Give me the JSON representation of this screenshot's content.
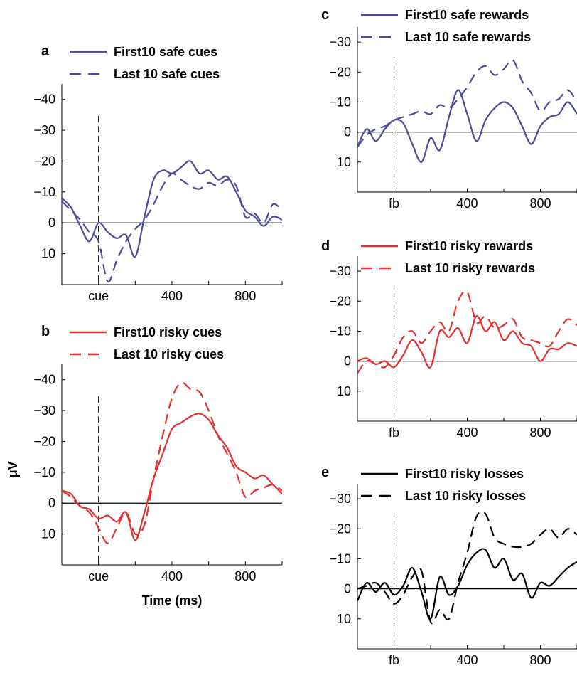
{
  "chart_data": [
    {
      "panel_label": "a",
      "type": "line",
      "xlabel": "",
      "ylabel": "",
      "xlim": [
        -200,
        1000
      ],
      "ylim": [
        -45,
        20
      ],
      "y_reversed": true,
      "xtick_labels": [
        "cue",
        "400",
        "800"
      ],
      "xtick_values": [
        0,
        400,
        800
      ],
      "ytick_values": [
        -40,
        -30,
        -20,
        -10,
        0,
        10
      ],
      "ytick_labels": [
        "−40",
        "−30",
        "−20",
        "−10",
        "0",
        "10"
      ],
      "legend_position": "top",
      "series": [
        {
          "name": "First10 safe cues",
          "color": "#4b4b9b",
          "dash": "solid",
          "x": [
            -200,
            -150,
            -100,
            -50,
            0,
            50,
            100,
            150,
            200,
            250,
            300,
            350,
            400,
            450,
            500,
            550,
            600,
            650,
            700,
            750,
            800,
            850,
            900,
            950,
            1000
          ],
          "y": [
            -8,
            -5,
            1,
            6,
            0,
            3,
            5,
            4,
            11,
            -2,
            -14,
            -17,
            -16,
            -18,
            -20,
            -16,
            -17,
            -14,
            -15,
            -10,
            -4,
            -2,
            1,
            -2,
            -1
          ]
        },
        {
          "name": "Last 10 safe cues",
          "color": "#4b4b9b",
          "dash": "dashed",
          "x": [
            -200,
            -150,
            -100,
            -50,
            0,
            50,
            100,
            150,
            200,
            250,
            300,
            350,
            400,
            450,
            500,
            550,
            600,
            650,
            700,
            750,
            800,
            850,
            900,
            950,
            1000
          ],
          "y": [
            -7,
            -4,
            -1,
            3,
            6,
            19,
            12,
            6,
            2,
            -1,
            -6,
            -12,
            -16,
            -14,
            -12,
            -11,
            -13,
            -12,
            -14,
            -12,
            -2,
            -3,
            0,
            -6,
            -4
          ]
        }
      ]
    },
    {
      "panel_label": "b",
      "type": "line",
      "xlabel": "Time (ms)",
      "ylabel": "μV",
      "xlim": [
        -200,
        1000
      ],
      "ylim": [
        -45,
        20
      ],
      "y_reversed": true,
      "xtick_labels": [
        "cue",
        "400",
        "800"
      ],
      "xtick_values": [
        0,
        400,
        800
      ],
      "ytick_values": [
        -40,
        -30,
        -20,
        -10,
        0,
        10
      ],
      "ytick_labels": [
        "−40",
        "−30",
        "−20",
        "−10",
        "0",
        "10"
      ],
      "legend_position": "top",
      "series": [
        {
          "name": "First10 risky cues",
          "color": "#e03030",
          "dash": "solid",
          "x": [
            -200,
            -150,
            -100,
            -50,
            0,
            50,
            100,
            150,
            200,
            250,
            300,
            350,
            400,
            450,
            500,
            550,
            600,
            650,
            700,
            750,
            800,
            850,
            900,
            950,
            1000
          ],
          "y": [
            -4,
            -3,
            1,
            2,
            5,
            4,
            6,
            3,
            12,
            3,
            -8,
            -16,
            -24,
            -26,
            -28,
            -29,
            -27,
            -22,
            -18,
            -12,
            -10,
            -8,
            -9,
            -6,
            -3
          ]
        },
        {
          "name": "Last 10 risky cues",
          "color": "#e03030",
          "dash": "dashed",
          "x": [
            -200,
            -150,
            -100,
            -50,
            0,
            50,
            100,
            150,
            200,
            250,
            300,
            350,
            400,
            450,
            500,
            550,
            600,
            650,
            700,
            750,
            800,
            850,
            900,
            950,
            1000
          ],
          "y": [
            -4,
            -2,
            1,
            3,
            8,
            13,
            8,
            3,
            10,
            7,
            -8,
            -22,
            -34,
            -39,
            -37,
            -36,
            -30,
            -22,
            -16,
            -10,
            -2,
            -4,
            -5,
            -6,
            -4
          ]
        }
      ]
    },
    {
      "panel_label": "c",
      "type": "line",
      "xlabel": "",
      "ylabel": "",
      "xlim": [
        -200,
        1000
      ],
      "ylim": [
        -35,
        20
      ],
      "y_reversed": true,
      "xtick_labels": [
        "fb",
        "400",
        "800"
      ],
      "xtick_values": [
        0,
        400,
        800
      ],
      "ytick_values": [
        -30,
        -20,
        -10,
        0,
        10
      ],
      "ytick_labels": [
        "−30",
        "−20",
        "−10",
        "0",
        "10"
      ],
      "legend_position": "top",
      "series": [
        {
          "name": "First10 safe rewards",
          "color": "#4b4b9b",
          "dash": "solid",
          "x": [
            -200,
            -150,
            -100,
            -50,
            0,
            50,
            100,
            150,
            200,
            250,
            300,
            350,
            400,
            450,
            500,
            550,
            600,
            650,
            700,
            750,
            800,
            850,
            900,
            950,
            1000
          ],
          "y": [
            5,
            -1,
            3,
            -1,
            -4,
            -3,
            4,
            10,
            2,
            6,
            -5,
            -14,
            -6,
            3,
            -4,
            -8,
            -10,
            -8,
            -2,
            4,
            -2,
            -5,
            -6,
            -10,
            -6
          ]
        },
        {
          "name": "Last 10 safe rewards",
          "color": "#4b4b9b",
          "dash": "dashed",
          "x": [
            -200,
            -150,
            -100,
            -50,
            0,
            50,
            100,
            150,
            200,
            250,
            300,
            350,
            400,
            450,
            500,
            550,
            600,
            650,
            700,
            750,
            800,
            850,
            900,
            950,
            1000
          ],
          "y": [
            5,
            1,
            -1,
            -2,
            -4,
            -5,
            -6,
            -7,
            -6,
            -9,
            -8,
            -11,
            -15,
            -20,
            -22,
            -19,
            -21,
            -24,
            -17,
            -13,
            -7,
            -10,
            -11,
            -14,
            -10
          ]
        }
      ]
    },
    {
      "panel_label": "d",
      "type": "line",
      "xlabel": "",
      "ylabel": "",
      "xlim": [
        -200,
        1000
      ],
      "ylim": [
        -35,
        20
      ],
      "y_reversed": true,
      "xtick_labels": [
        "fb",
        "400",
        "800"
      ],
      "xtick_values": [
        0,
        400,
        800
      ],
      "ytick_values": [
        -30,
        -20,
        -10,
        0,
        10
      ],
      "ytick_labels": [
        "−30",
        "−20",
        "−10",
        "0",
        "10"
      ],
      "legend_position": "top",
      "series": [
        {
          "name": "First10 risky rewards",
          "color": "#e03030",
          "dash": "solid",
          "x": [
            -200,
            -150,
            -100,
            -50,
            0,
            50,
            100,
            150,
            200,
            250,
            300,
            350,
            400,
            450,
            500,
            550,
            600,
            650,
            700,
            750,
            800,
            850,
            900,
            950,
            1000
          ],
          "y": [
            0,
            -1,
            1,
            0,
            2,
            -2,
            -7,
            -3,
            2,
            -10,
            -8,
            -11,
            -6,
            -15,
            -10,
            -13,
            -7,
            -10,
            -6,
            -5,
            0,
            -4,
            -4,
            -6,
            -5
          ]
        },
        {
          "name": "Last 10 risky rewards",
          "color": "#e03030",
          "dash": "dashed",
          "x": [
            -200,
            -150,
            -100,
            -50,
            0,
            50,
            100,
            150,
            200,
            250,
            300,
            350,
            400,
            450,
            500,
            550,
            600,
            650,
            700,
            750,
            800,
            850,
            900,
            950,
            1000
          ],
          "y": [
            4,
            0,
            1,
            2,
            -2,
            -8,
            -10,
            -6,
            -10,
            -13,
            -10,
            -20,
            -23,
            -13,
            -15,
            -11,
            -12,
            -14,
            -8,
            -7,
            -6,
            -5,
            -10,
            -14,
            -12
          ]
        }
      ]
    },
    {
      "panel_label": "e",
      "type": "line",
      "xlabel": "",
      "ylabel": "",
      "xlim": [
        -200,
        1000
      ],
      "ylim": [
        -35,
        20
      ],
      "y_reversed": true,
      "xtick_labels": [
        "fb",
        "400",
        "800"
      ],
      "xtick_values": [
        0,
        400,
        800
      ],
      "ytick_values": [
        -30,
        -20,
        -10,
        0,
        10
      ],
      "ytick_labels": [
        "−30",
        "−20",
        "−10",
        "0",
        "10"
      ],
      "legend_position": "top",
      "series": [
        {
          "name": "First10 risky losses",
          "color": "#000000",
          "dash": "solid",
          "x": [
            -200,
            -150,
            -100,
            -50,
            0,
            50,
            100,
            150,
            200,
            250,
            300,
            350,
            400,
            450,
            500,
            550,
            600,
            650,
            700,
            750,
            800,
            850,
            900,
            950,
            1000
          ],
          "y": [
            4,
            -2,
            1,
            -2,
            2,
            -1,
            -7,
            1,
            10,
            -4,
            2,
            -1,
            -8,
            -12,
            -13,
            -7,
            -10,
            -3,
            -5,
            3,
            -2,
            -1,
            -4,
            -7,
            -9
          ]
        },
        {
          "name": "Last 10 risky losses",
          "color": "#000000",
          "dash": "dashed",
          "x": [
            -200,
            -150,
            -100,
            -50,
            0,
            50,
            100,
            150,
            200,
            250,
            300,
            350,
            400,
            450,
            500,
            550,
            600,
            650,
            700,
            750,
            800,
            850,
            900,
            950,
            1000
          ],
          "y": [
            0,
            -1,
            -2,
            1,
            5,
            2,
            -4,
            -6,
            11,
            7,
            10,
            -2,
            -12,
            -24,
            -25,
            -17,
            -15,
            -14,
            -14,
            -15,
            -18,
            -20,
            -17,
            -20,
            -18
          ]
        }
      ]
    }
  ]
}
